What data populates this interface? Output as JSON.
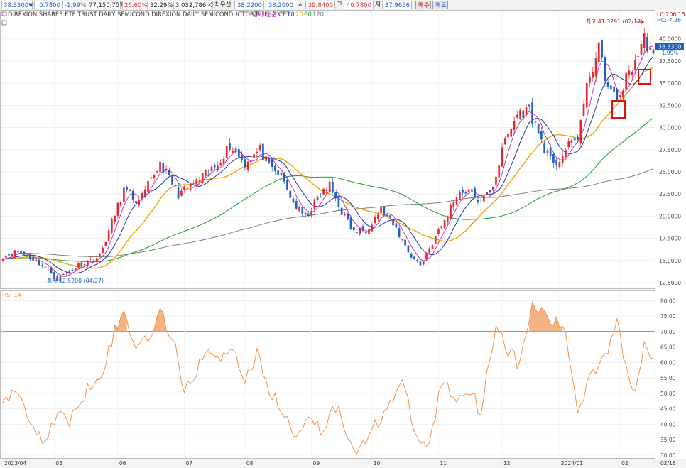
{
  "toolbar": {
    "price": "38.3300",
    "change": "0.7800",
    "change_pct": "-1.99%",
    "volume": "77,150,757",
    "ratio1": "26.60%",
    "ratio2": "32.29%",
    "amount": "3,032,786 K",
    "label_prev": "최우선",
    "bid": "38.2200",
    "ask": "38.2000",
    "label_open": "시",
    "open": "39.8400",
    "label_high": "고",
    "high": "40.7800",
    "label_low": "저",
    "low": "37.9656",
    "buy_label": "매수",
    "sell_label": "매도"
  },
  "header": {
    "title": "DIREXION SHARES ETF TRUST DAILY SEMICOND  DIREXION DAILY SEMICONDUCTOR BULL 3X ET",
    "ma_label": "종가 단순",
    "ma_periods": [
      "5",
      "10",
      "20",
      "60",
      "120"
    ]
  },
  "annotations": {
    "high": "최고 41.3291 (02/12)",
    "low": "최저 12.5200 (04/27)",
    "lc": "LC:206.15",
    "hc": "HC:-7.26",
    "current_price": "38.3300",
    "current_pct": "-1.99%"
  },
  "rsi_label": "RSI 14",
  "colors": {
    "up": "#e8262b",
    "down": "#1f5fbf",
    "ma5": "#c020c0",
    "ma10": "#2030a0",
    "ma20": "#f0a400",
    "ma60": "#1a9a2a",
    "ma120": "#777777",
    "rsi": "#f08a3c",
    "rsi_fill": "#f4a46c",
    "marker": "#e01010"
  },
  "chart_data": [
    {
      "type": "candlestick",
      "title": "DIREXION SHARES ETF TRUST DAILY SEMICOND  DIREXION DAILY SEMICONDUCTOR BULL 3X ET",
      "ylim": [
        12.5,
        41.5
      ],
      "yticks": [
        "12.5000",
        "15.0000",
        "17.5000",
        "20.0000",
        "22.5000",
        "25.0000",
        "27.5000",
        "30.0000",
        "32.5000",
        "35.0000",
        "37.5000",
        "40.0000"
      ],
      "xticks": [
        "2023/04",
        "05",
        "06",
        "07",
        "08",
        "09",
        "10",
        "11",
        "12",
        "2024/01",
        "02",
        "02/16"
      ],
      "anchors": [
        [
          0,
          15.5
        ],
        [
          5,
          16.0
        ],
        [
          10,
          15.2
        ],
        [
          15,
          14.0
        ],
        [
          18,
          12.9
        ],
        [
          25,
          14.5
        ],
        [
          32,
          15.5
        ],
        [
          40,
          23.0
        ],
        [
          45,
          21.5
        ],
        [
          52,
          26.0
        ],
        [
          58,
          22.5
        ],
        [
          63,
          23.5
        ],
        [
          70,
          25.5
        ],
        [
          75,
          28.0
        ],
        [
          80,
          26.0
        ],
        [
          85,
          27.5
        ],
        [
          88,
          25.5
        ],
        [
          92,
          24.5
        ],
        [
          96,
          21.5
        ],
        [
          100,
          19.8
        ],
        [
          104,
          22.0
        ],
        [
          108,
          23.5
        ],
        [
          112,
          20.5
        ],
        [
          116,
          18.2
        ],
        [
          120,
          18.5
        ],
        [
          125,
          20.8
        ],
        [
          130,
          18.5
        ],
        [
          135,
          15.5
        ],
        [
          138,
          14.5
        ],
        [
          142,
          17.0
        ],
        [
          146,
          19.5
        ],
        [
          150,
          22.5
        ],
        [
          154,
          23.0
        ],
        [
          158,
          21.5
        ],
        [
          162,
          23.5
        ],
        [
          166,
          28.5
        ],
        [
          170,
          31.5
        ],
        [
          174,
          32.0
        ],
        [
          178,
          28.5
        ],
        [
          182,
          25.5
        ],
        [
          186,
          27.5
        ],
        [
          190,
          29.0
        ],
        [
          194,
          36.0
        ],
        [
          197,
          38.8
        ],
        [
          200,
          34.5
        ],
        [
          203,
          33.0
        ],
        [
          206,
          35.5
        ],
        [
          209,
          37.5
        ],
        [
          212,
          40.0
        ],
        [
          215,
          38.3
        ]
      ],
      "high": {
        "label": "최고 41.3291 (02/12)",
        "value": 41.3291,
        "date": "02/12"
      },
      "low": {
        "label": "최저 12.5200 (04/27)",
        "value": 12.52,
        "date": "04/27"
      },
      "last": 38.33,
      "moving_averages": [
        "5",
        "10",
        "20",
        "60",
        "120"
      ]
    },
    {
      "type": "line",
      "title": "RSI 14",
      "ylim": [
        30,
        81
      ],
      "yticks": [
        "30.00",
        "35.00",
        "40.00",
        "45.00",
        "50.00",
        "55.00",
        "60.00",
        "65.00",
        "70.00",
        "75.00",
        "80.00"
      ],
      "threshold": 70,
      "anchors": [
        [
          0,
          48
        ],
        [
          5,
          50
        ],
        [
          10,
          40
        ],
        [
          14,
          33
        ],
        [
          18,
          45
        ],
        [
          22,
          40
        ],
        [
          28,
          52
        ],
        [
          33,
          58
        ],
        [
          37,
          70
        ],
        [
          40,
          76
        ],
        [
          44,
          65
        ],
        [
          49,
          70
        ],
        [
          52,
          76
        ],
        [
          56,
          68
        ],
        [
          60,
          52
        ],
        [
          63,
          55
        ],
        [
          67,
          65
        ],
        [
          71,
          60
        ],
        [
          75,
          66
        ],
        [
          80,
          55
        ],
        [
          84,
          62
        ],
        [
          88,
          52
        ],
        [
          93,
          42
        ],
        [
          97,
          36
        ],
        [
          101,
          44
        ],
        [
          105,
          38
        ],
        [
          110,
          46
        ],
        [
          114,
          37
        ],
        [
          118,
          31
        ],
        [
          122,
          38
        ],
        [
          127,
          46
        ],
        [
          132,
          53
        ],
        [
          137,
          35
        ],
        [
          141,
          33
        ],
        [
          145,
          54
        ],
        [
          150,
          48
        ],
        [
          154,
          52
        ],
        [
          158,
          44
        ],
        [
          163,
          73
        ],
        [
          167,
          64
        ],
        [
          171,
          59
        ],
        [
          175,
          79
        ],
        [
          178,
          76
        ],
        [
          182,
          73
        ],
        [
          186,
          70
        ],
        [
          190,
          44
        ],
        [
          194,
          56
        ],
        [
          197,
          60
        ],
        [
          200,
          65
        ],
        [
          203,
          74
        ],
        [
          206,
          57
        ],
        [
          209,
          52
        ],
        [
          212,
          66
        ],
        [
          215,
          63
        ]
      ]
    }
  ]
}
